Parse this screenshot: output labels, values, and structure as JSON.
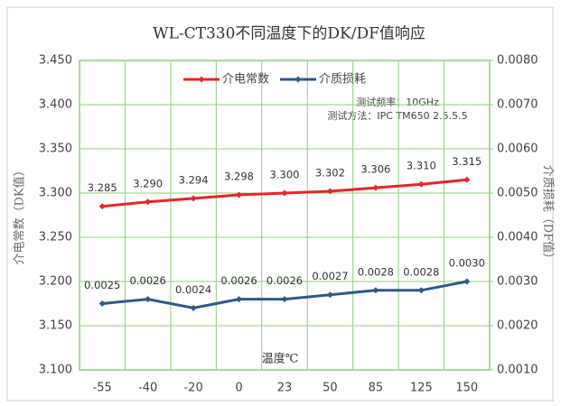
{
  "chart_data": {
    "type": "line",
    "title": "WL-CT330不同温度下的DK/DF值响应",
    "xlabel": "温度℃",
    "ylabel": "介电常数（DK值）",
    "y2label": "介质损耗（DF值）",
    "annotations": [
      "测试频率：10GHz",
      "测试方法：IPC  TM650  2.5.5.5"
    ],
    "categories": [
      "-55",
      "-40",
      "-20",
      "0",
      "23",
      "50",
      "85",
      "125",
      "150"
    ],
    "series": [
      {
        "name": "介电常数",
        "color": "#e8242a",
        "values": [
          3.285,
          3.29,
          3.294,
          3.298,
          3.3,
          3.302,
          3.306,
          3.31,
          3.315
        ],
        "value_labels": [
          "3.285",
          "3.290",
          "3.294",
          "3.298",
          "3.300",
          "3.302",
          "3.306",
          "3.310",
          "3.315"
        ]
      },
      {
        "name": "介质损耗",
        "color": "#2e5a88",
        "axis": "y2",
        "values": [
          0.0025,
          0.0026,
          0.0024,
          0.0026,
          0.0026,
          0.0027,
          0.0028,
          0.0028,
          0.003
        ],
        "value_labels": [
          "0.0025",
          "0.0026",
          "0.0024",
          "0.0026",
          "0.0026",
          "0.0027",
          "0.0028",
          "0.0028",
          "0.0030"
        ]
      }
    ],
    "ylim": [
      3.1,
      3.45
    ],
    "yticks": [
      {
        "value": 3.1,
        "label": "3.100"
      },
      {
        "value": 3.15,
        "label": "3.150"
      },
      {
        "value": 3.2,
        "label": "3.200"
      },
      {
        "value": 3.25,
        "label": "3.250"
      },
      {
        "value": 3.3,
        "label": "3.300"
      },
      {
        "value": 3.35,
        "label": "3.350"
      },
      {
        "value": 3.4,
        "label": "3.400"
      },
      {
        "value": 3.45,
        "label": "3.450"
      }
    ],
    "y2lim": [
      0.001,
      0.008
    ],
    "y2ticks": [
      {
        "value": 0.001,
        "label": "0.0010"
      },
      {
        "value": 0.002,
        "label": "0.0020"
      },
      {
        "value": 0.003,
        "label": "0.0030"
      },
      {
        "value": 0.004,
        "label": "0.0040"
      },
      {
        "value": 0.005,
        "label": "0.0050"
      },
      {
        "value": 0.006,
        "label": "0.0060"
      },
      {
        "value": 0.007,
        "label": "0.0070"
      },
      {
        "value": 0.008,
        "label": "0.0080"
      }
    ],
    "grid": true,
    "legend": "top"
  }
}
